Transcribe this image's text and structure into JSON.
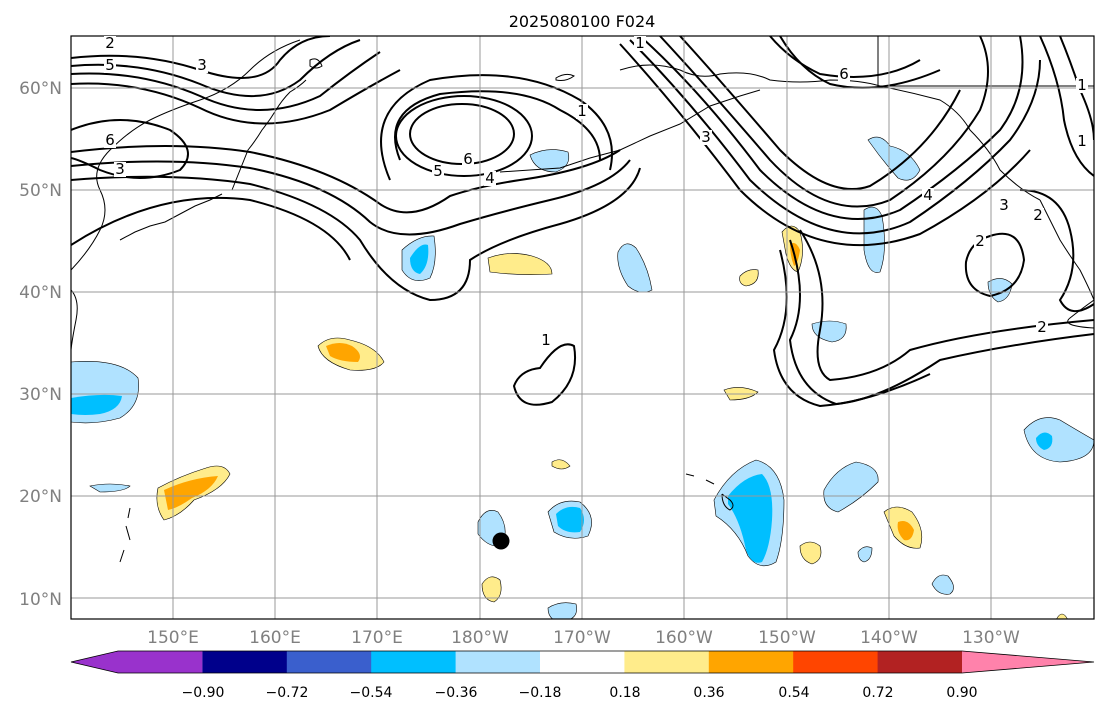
{
  "title": "2025080100 F024",
  "map": {
    "lat_ticks": [
      "60°N",
      "50°N",
      "40°N",
      "30°N",
      "20°N",
      "10°N"
    ],
    "lon_ticks": [
      "150°E",
      "160°E",
      "170°E",
      "180°W",
      "170°W",
      "160°W",
      "150°W",
      "140°W",
      "130°W"
    ],
    "grid": true,
    "lon_range": [
      140,
      240
    ],
    "lat_range": [
      8,
      65
    ]
  },
  "colorbar": {
    "tick_labels": [
      "−0.90",
      "−0.72",
      "−0.54",
      "−0.36",
      "−0.18",
      "0.18",
      "0.36",
      "0.54",
      "0.72",
      "0.90"
    ],
    "colors": [
      "#9932cc",
      "#00008b",
      "#3a5fcd",
      "#00bfff",
      "#b0e2ff",
      "#ffffff",
      "#ffec8b",
      "#ffa500",
      "#ff4500",
      "#b22222",
      "#ff82ab"
    ],
    "extend": "both"
  },
  "contour_labels": [
    "2",
    "5",
    "3",
    "6",
    "3",
    "1",
    "6",
    "5",
    "4",
    "1",
    "3",
    "6",
    "4",
    "3",
    "2",
    "2",
    "1",
    "1",
    "2",
    "1"
  ],
  "colors": {
    "grid": "#999999",
    "coast": "#000000",
    "contour": "#000000"
  }
}
